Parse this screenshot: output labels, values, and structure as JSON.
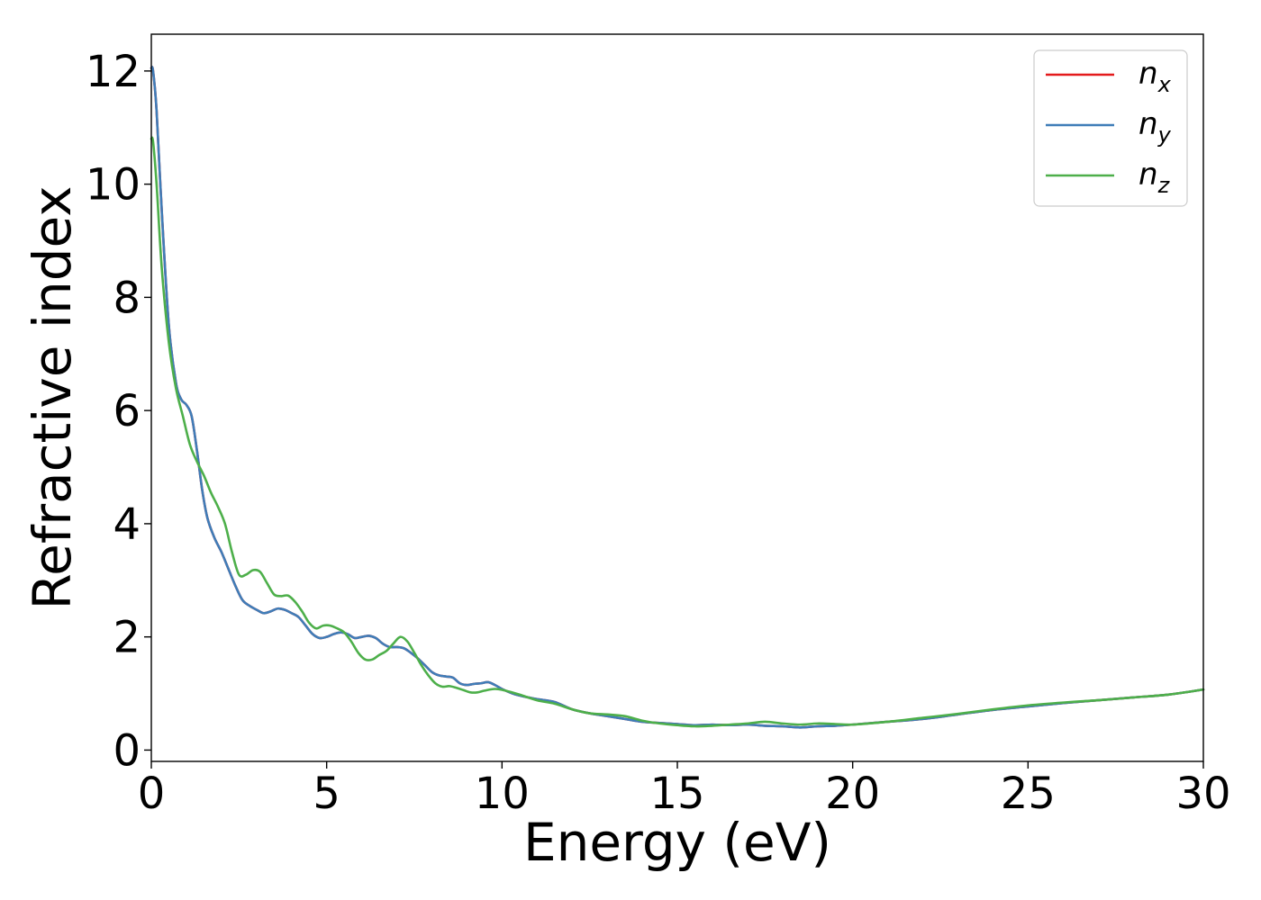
{
  "chart_data": {
    "type": "line",
    "title": "",
    "xlabel": "Energy (eV)",
    "ylabel": "Refractive index",
    "xlim": [
      0,
      30
    ],
    "ylim": [
      -0.2,
      12.65
    ],
    "xticks": [
      0,
      5,
      10,
      15,
      20,
      25,
      30
    ],
    "yticks": [
      0,
      2,
      4,
      6,
      8,
      10,
      12
    ],
    "grid": false,
    "legend_position": "top-right",
    "series": [
      {
        "name": "n",
        "subscript": "x",
        "color": "#e41a1c",
        "x": [
          0,
          0.05,
          0.15,
          0.3,
          0.5,
          0.7,
          0.85,
          1.0,
          1.15,
          1.3,
          1.45,
          1.6,
          1.8,
          2.0,
          2.2,
          2.4,
          2.6,
          2.8,
          3.0,
          3.2,
          3.4,
          3.6,
          3.8,
          4.0,
          4.2,
          4.4,
          4.6,
          4.8,
          5.0,
          5.2,
          5.4,
          5.6,
          5.8,
          6.0,
          6.2,
          6.4,
          6.6,
          6.8,
          7.0,
          7.2,
          7.4,
          7.6,
          7.8,
          8.0,
          8.2,
          8.4,
          8.6,
          8.8,
          9.0,
          9.2,
          9.4,
          9.6,
          9.8,
          10.0,
          10.3,
          10.6,
          11.0,
          11.5,
          12.0,
          12.5,
          13.0,
          13.5,
          14.0,
          14.5,
          15.0,
          15.5,
          16.0,
          16.5,
          17.0,
          17.5,
          18.0,
          18.5,
          19.0,
          19.5,
          20.0,
          21.0,
          22.0,
          23.0,
          24.0,
          25.0,
          26.0,
          27.0,
          28.0,
          29.0,
          30.0
        ],
        "values": [
          12.05,
          12.0,
          11.3,
          9.5,
          7.5,
          6.5,
          6.2,
          6.1,
          5.9,
          5.3,
          4.6,
          4.1,
          3.75,
          3.5,
          3.2,
          2.9,
          2.65,
          2.55,
          2.48,
          2.42,
          2.45,
          2.5,
          2.48,
          2.42,
          2.35,
          2.2,
          2.05,
          1.98,
          2.0,
          2.05,
          2.08,
          2.05,
          1.98,
          2.0,
          2.02,
          1.98,
          1.88,
          1.82,
          1.82,
          1.8,
          1.72,
          1.62,
          1.5,
          1.38,
          1.32,
          1.3,
          1.28,
          1.18,
          1.15,
          1.17,
          1.18,
          1.2,
          1.15,
          1.08,
          1.0,
          0.95,
          0.9,
          0.85,
          0.72,
          0.65,
          0.6,
          0.55,
          0.5,
          0.48,
          0.46,
          0.44,
          0.45,
          0.44,
          0.45,
          0.43,
          0.42,
          0.4,
          0.42,
          0.43,
          0.45,
          0.5,
          0.55,
          0.63,
          0.71,
          0.77,
          0.83,
          0.88,
          0.93,
          0.98,
          1.07
        ]
      },
      {
        "name": "n",
        "subscript": "y",
        "color": "#3f7db8",
        "x": [
          0,
          0.05,
          0.15,
          0.3,
          0.5,
          0.7,
          0.85,
          1.0,
          1.15,
          1.3,
          1.45,
          1.6,
          1.8,
          2.0,
          2.2,
          2.4,
          2.6,
          2.8,
          3.0,
          3.2,
          3.4,
          3.6,
          3.8,
          4.0,
          4.2,
          4.4,
          4.6,
          4.8,
          5.0,
          5.2,
          5.4,
          5.6,
          5.8,
          6.0,
          6.2,
          6.4,
          6.6,
          6.8,
          7.0,
          7.2,
          7.4,
          7.6,
          7.8,
          8.0,
          8.2,
          8.4,
          8.6,
          8.8,
          9.0,
          9.2,
          9.4,
          9.6,
          9.8,
          10.0,
          10.3,
          10.6,
          11.0,
          11.5,
          12.0,
          12.5,
          13.0,
          13.5,
          14.0,
          14.5,
          15.0,
          15.5,
          16.0,
          16.5,
          17.0,
          17.5,
          18.0,
          18.5,
          19.0,
          19.5,
          20.0,
          21.0,
          22.0,
          23.0,
          24.0,
          25.0,
          26.0,
          27.0,
          28.0,
          29.0,
          30.0
        ],
        "values": [
          12.05,
          12.0,
          11.3,
          9.5,
          7.5,
          6.5,
          6.2,
          6.1,
          5.9,
          5.3,
          4.6,
          4.1,
          3.75,
          3.5,
          3.2,
          2.9,
          2.65,
          2.55,
          2.48,
          2.42,
          2.45,
          2.5,
          2.48,
          2.42,
          2.35,
          2.2,
          2.05,
          1.98,
          2.0,
          2.05,
          2.08,
          2.05,
          1.98,
          2.0,
          2.02,
          1.98,
          1.88,
          1.82,
          1.82,
          1.8,
          1.72,
          1.62,
          1.5,
          1.38,
          1.32,
          1.3,
          1.28,
          1.18,
          1.15,
          1.17,
          1.18,
          1.2,
          1.15,
          1.08,
          1.0,
          0.95,
          0.9,
          0.85,
          0.72,
          0.65,
          0.6,
          0.55,
          0.5,
          0.48,
          0.46,
          0.44,
          0.45,
          0.44,
          0.45,
          0.43,
          0.42,
          0.4,
          0.42,
          0.43,
          0.45,
          0.5,
          0.55,
          0.63,
          0.71,
          0.77,
          0.83,
          0.88,
          0.93,
          0.98,
          1.07
        ]
      },
      {
        "name": "n",
        "subscript": "z",
        "color": "#4daf4a",
        "x": [
          0,
          0.05,
          0.15,
          0.3,
          0.5,
          0.7,
          0.9,
          1.1,
          1.3,
          1.5,
          1.7,
          1.9,
          2.1,
          2.3,
          2.5,
          2.7,
          2.9,
          3.1,
          3.3,
          3.5,
          3.7,
          3.9,
          4.1,
          4.3,
          4.5,
          4.7,
          4.9,
          5.1,
          5.3,
          5.5,
          5.7,
          5.9,
          6.1,
          6.3,
          6.5,
          6.7,
          6.9,
          7.1,
          7.3,
          7.5,
          7.7,
          7.9,
          8.1,
          8.3,
          8.5,
          8.7,
          8.9,
          9.1,
          9.3,
          9.5,
          9.8,
          10.1,
          10.5,
          11.0,
          11.5,
          12.0,
          12.5,
          13.0,
          13.5,
          14.0,
          14.5,
          15.0,
          15.5,
          16.0,
          16.5,
          17.0,
          17.5,
          18.0,
          18.5,
          19.0,
          19.5,
          20.0,
          21.0,
          22.0,
          23.0,
          24.0,
          25.0,
          26.0,
          27.0,
          28.0,
          29.0,
          30.0
        ],
        "values": [
          10.8,
          10.75,
          10.0,
          8.5,
          7.2,
          6.4,
          5.9,
          5.4,
          5.1,
          4.85,
          4.55,
          4.3,
          4.0,
          3.5,
          3.1,
          3.1,
          3.18,
          3.15,
          2.95,
          2.75,
          2.72,
          2.73,
          2.62,
          2.45,
          2.25,
          2.15,
          2.2,
          2.2,
          2.15,
          2.08,
          1.92,
          1.72,
          1.6,
          1.6,
          1.68,
          1.75,
          1.88,
          2.0,
          1.92,
          1.72,
          1.5,
          1.32,
          1.18,
          1.12,
          1.13,
          1.1,
          1.06,
          1.02,
          1.02,
          1.05,
          1.08,
          1.05,
          0.98,
          0.88,
          0.82,
          0.72,
          0.65,
          0.63,
          0.6,
          0.52,
          0.47,
          0.44,
          0.42,
          0.43,
          0.45,
          0.47,
          0.5,
          0.47,
          0.45,
          0.47,
          0.46,
          0.45,
          0.5,
          0.57,
          0.64,
          0.72,
          0.79,
          0.84,
          0.88,
          0.93,
          0.98,
          1.07
        ]
      }
    ]
  }
}
